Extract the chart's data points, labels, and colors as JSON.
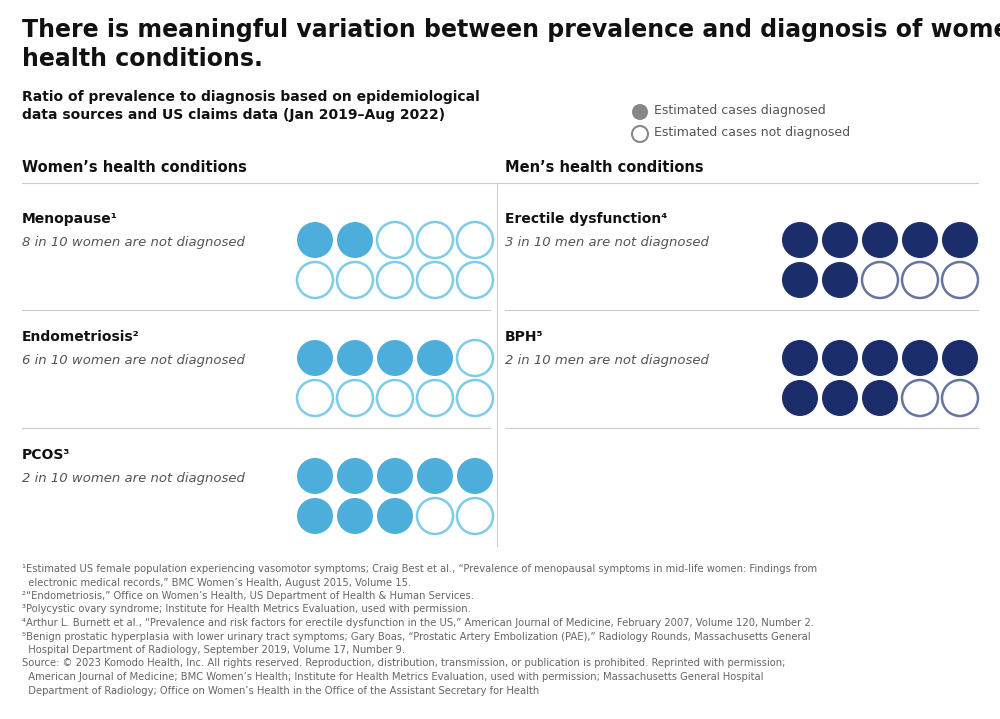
{
  "title": "There is meaningful variation between prevalence and diagnosis of women’s\nhealth conditions.",
  "subtitle": "Ratio of prevalence to diagnosis based on epidemiological\ndata sources and US claims data (Jan 2019–Aug 2022)",
  "legend_diagnosed": "Estimated cases diagnosed",
  "legend_not_diagnosed": "Estimated cases not diagnosed",
  "women_header": "Women’s health conditions",
  "men_header": "Men’s health conditions",
  "conditions": [
    {
      "name": "Menopause¹",
      "sub": "8 in 10 women are not diagnosed",
      "total": 10,
      "diagnosed": 2,
      "color_diagnosed": "#4DAEDB",
      "color_not_fill": "#FFFFFF",
      "color_not_edge": "#7ECBEA",
      "cols": 5,
      "rows": 2,
      "side": "women",
      "row_idx": 0
    },
    {
      "name": "Endometriosis²",
      "sub": "6 in 10 women are not diagnosed",
      "total": 10,
      "diagnosed": 4,
      "color_diagnosed": "#4DAEDB",
      "color_not_fill": "#FFFFFF",
      "color_not_edge": "#7ECBEA",
      "cols": 5,
      "rows": 2,
      "side": "women",
      "row_idx": 1
    },
    {
      "name": "PCOS³",
      "sub": "2 in 10 women are not diagnosed",
      "total": 10,
      "diagnosed": 8,
      "color_diagnosed": "#4DAEDB",
      "color_not_fill": "#FFFFFF",
      "color_not_edge": "#7ECBEA",
      "cols": 5,
      "rows": 2,
      "side": "women",
      "row_idx": 2
    },
    {
      "name": "Erectile dysfunction⁴",
      "sub": "3 in 10 men are not diagnosed",
      "total": 10,
      "diagnosed": 7,
      "color_diagnosed": "#1B2D6B",
      "color_not_fill": "#FFFFFF",
      "color_not_edge": "#6675A0",
      "cols": 5,
      "rows": 2,
      "side": "men",
      "row_idx": 0
    },
    {
      "name": "BPH⁵",
      "sub": "2 in 10 men are not diagnosed",
      "total": 10,
      "diagnosed": 8,
      "color_diagnosed": "#1B2D6B",
      "color_not_fill": "#FFFFFF",
      "color_not_edge": "#6675A0",
      "cols": 5,
      "rows": 2,
      "side": "men",
      "row_idx": 1
    }
  ],
  "footnote_lines": [
    "¹Estimated US female population experiencing vasomotor symptoms; Craig Best et al., “Prevalence of menopausal symptoms in mid-life women: Findings from",
    "  electronic medical records,” BMC Women’s Health, August 2015, Volume 15.",
    "²“Endometriosis,” Office on Women’s Health, US Department of Health & Human Services.",
    "³Polycystic ovary syndrome; Institute for Health Metrics Evaluation, used with permission.",
    "⁴Arthur L. Burnett et al., “Prevalence and risk factors for erectile dysfunction in the US,” American Journal of Medicine, February 2007, Volume 120, Number 2.",
    "⁵Benign prostatic hyperplasia with lower urinary tract symptoms; Gary Boas, “Prostatic Artery Embolization (PAE),” Radiology Rounds, Massachusetts General",
    "  Hospital Department of Radiology, September 2019, Volume 17, Number 9.",
    "Source: © 2023 Komodo Health, Inc. All rights reserved. Reproduction, distribution, transmission, or publication is prohibited. Reprinted with permission;",
    "  American Journal of Medicine; BMC Women’s Health; Institute for Health Metrics Evaluation, used with permission; Massachusetts General Hospital",
    "  Department of Radiology; Office on Women’s Health in the Office of the Assistant Secretary for Health"
  ],
  "bg_color": "#FFFFFF",
  "divider_color": "#CCCCCC",
  "title_color": "#111111",
  "subtitle_color": "#111111",
  "header_color": "#111111",
  "condition_name_color": "#111111",
  "condition_sub_color": "#555555",
  "footnote_color": "#666666",
  "legend_color": "#555555"
}
